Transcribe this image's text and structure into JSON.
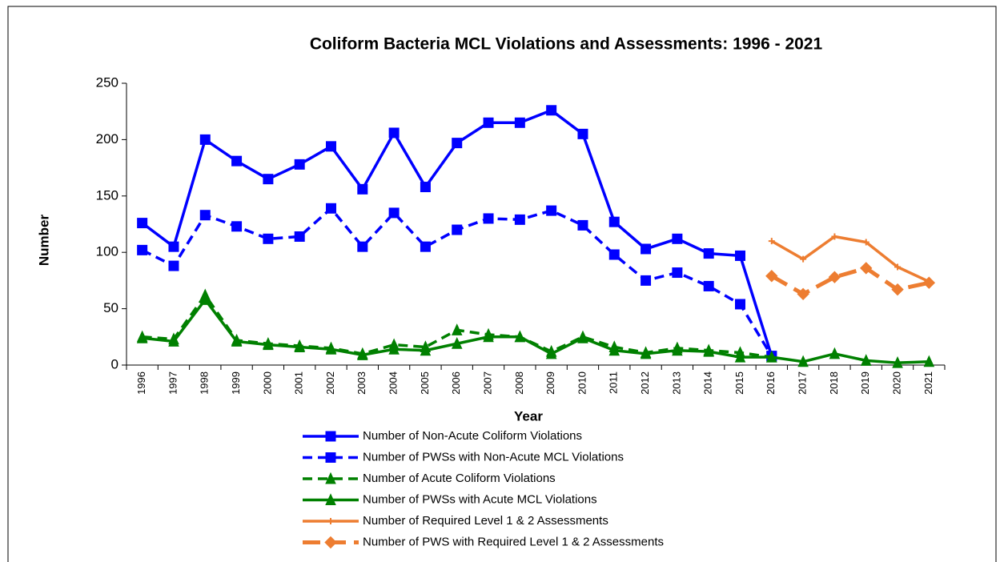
{
  "chart_data": {
    "type": "line",
    "title": "Coliform Bacteria MCL Violations and Assessments: 1996 - 2021",
    "x_label": "Year",
    "y_label": "Number",
    "categories": [
      "1996",
      "1997",
      "1998",
      "1999",
      "2000",
      "2001",
      "2002",
      "2003",
      "2004",
      "2005",
      "2006",
      "2007",
      "2008",
      "2009",
      "2010",
      "2011",
      "2012",
      "2013",
      "2014",
      "2015",
      "2016",
      "2017",
      "2018",
      "2019",
      "2020",
      "2021"
    ],
    "ylim": [
      0,
      250
    ],
    "yticks": [
      0,
      50,
      100,
      150,
      200,
      250
    ],
    "legend": "bottom",
    "series": [
      {
        "name": "Number of Non-Acute Coliform Violations",
        "color": "#0000ff",
        "dash": "solid",
        "marker": "square",
        "values": [
          126,
          105,
          200,
          181,
          165,
          178,
          194,
          156,
          206,
          158,
          197,
          215,
          215,
          226,
          205,
          127,
          103,
          112,
          99,
          97,
          8,
          null,
          null,
          null,
          null,
          null
        ]
      },
      {
        "name": "Number of PWSs with Non-Acute MCL Violations",
        "color": "#0000ff",
        "dash": "dashed",
        "marker": "square",
        "values": [
          102,
          88,
          133,
          123,
          112,
          114,
          139,
          105,
          135,
          105,
          120,
          130,
          129,
          137,
          124,
          98,
          75,
          82,
          70,
          54,
          8,
          null,
          null,
          null,
          null,
          null
        ]
      },
      {
        "name": "Number of Acute Coliform Violations",
        "color": "#008000",
        "dash": "dashed",
        "marker": "triangle",
        "values": [
          25,
          23,
          62,
          22,
          19,
          17,
          15,
          10,
          18,
          16,
          31,
          27,
          25,
          12,
          25,
          16,
          11,
          15,
          13,
          11,
          7,
          null,
          null,
          null,
          null,
          null
        ]
      },
      {
        "name": "Number of PWSs with Acute MCL Violations",
        "color": "#008000",
        "dash": "solid",
        "marker": "triangle",
        "values": [
          24,
          21,
          58,
          21,
          18,
          16,
          14,
          9,
          14,
          13,
          19,
          25,
          25,
          10,
          24,
          13,
          10,
          13,
          12,
          7,
          7,
          3,
          10,
          4,
          2,
          3
        ]
      },
      {
        "name": "Number of Required Level 1 & 2 Assessments",
        "color": "#ed7d31",
        "dash": "solid",
        "marker": "plus",
        "values": [
          null,
          null,
          null,
          null,
          null,
          null,
          null,
          null,
          null,
          null,
          null,
          null,
          null,
          null,
          null,
          null,
          null,
          null,
          null,
          null,
          110,
          94,
          114,
          109,
          87,
          74
        ]
      },
      {
        "name": "Number of PWS with Required Level 1 & 2 Assessments",
        "color": "#ed7d31",
        "dash": "longdash",
        "marker": "diamond",
        "values": [
          null,
          null,
          null,
          null,
          null,
          null,
          null,
          null,
          null,
          null,
          null,
          null,
          null,
          null,
          null,
          null,
          null,
          null,
          null,
          null,
          79,
          63,
          78,
          86,
          67,
          73
        ]
      }
    ]
  }
}
